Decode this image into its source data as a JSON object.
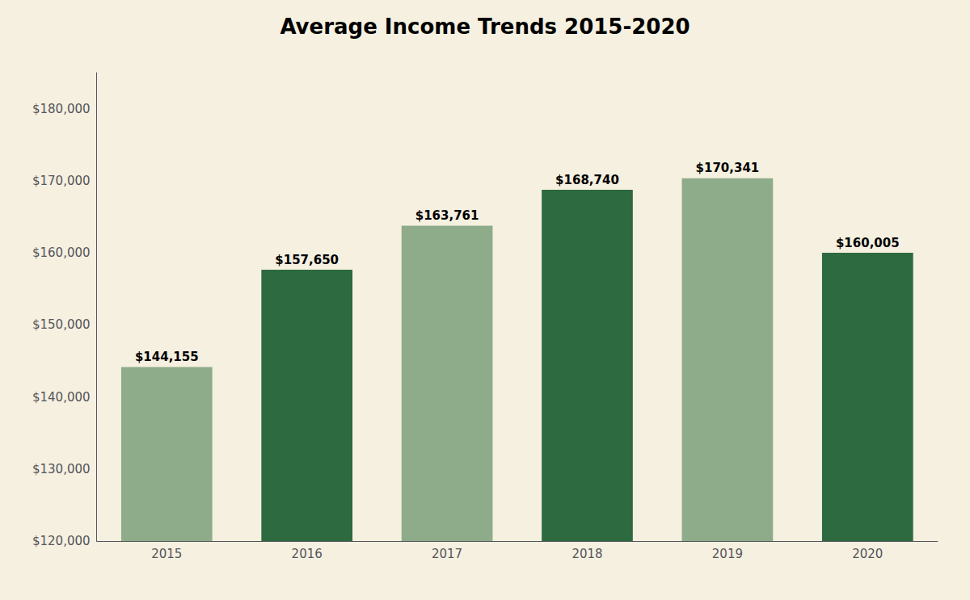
{
  "chart_data": {
    "type": "bar",
    "title": "Average Income Trends 2015-2020",
    "categories": [
      "2015",
      "2016",
      "2017",
      "2018",
      "2019",
      "2020"
    ],
    "values": [
      144155,
      157650,
      163761,
      168740,
      170341,
      160005
    ],
    "value_labels": [
      "$144,155",
      "$157,650",
      "$163,761",
      "$168,740",
      "$170,341",
      "$160,005"
    ],
    "colors": [
      "#8fac8a",
      "#2d6a3f",
      "#8fac8a",
      "#2d6a3f",
      "#8fac8a",
      "#2d6a3f"
    ],
    "ylim": [
      120000,
      185000
    ],
    "yticks": [
      {
        "value": 120000,
        "label": "$120,000"
      },
      {
        "value": 130000,
        "label": "$130,000"
      },
      {
        "value": 140000,
        "label": "$140,000"
      },
      {
        "value": 150000,
        "label": "$150,000"
      },
      {
        "value": 160000,
        "label": "$160,000"
      },
      {
        "value": 170000,
        "label": "$170,000"
      },
      {
        "value": 180000,
        "label": "$180,000"
      }
    ],
    "grid": false,
    "data_labels": true
  }
}
